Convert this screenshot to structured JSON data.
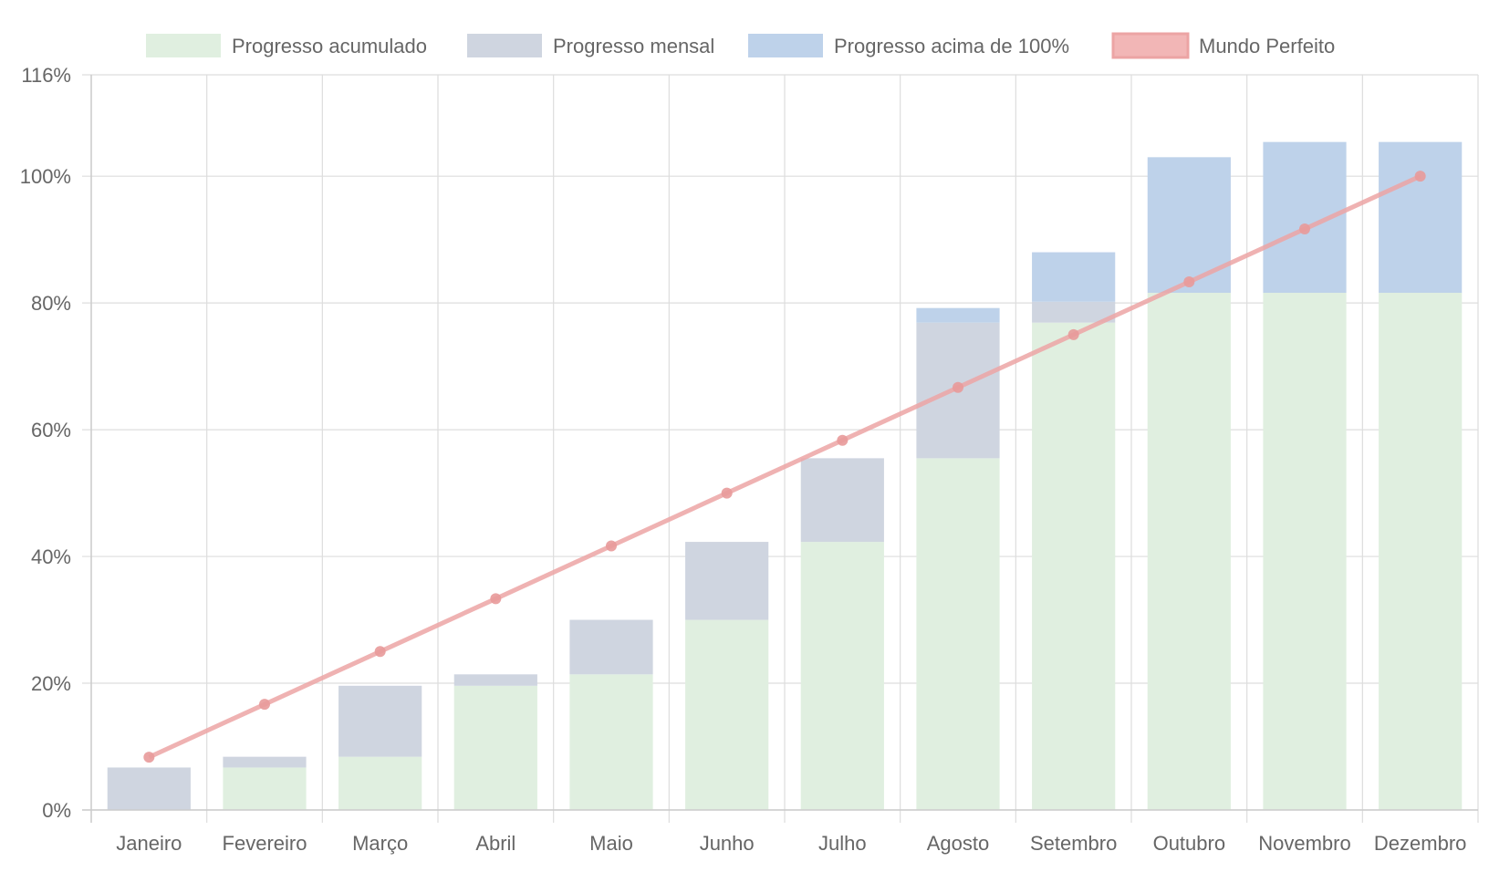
{
  "chart_data": {
    "type": "bar",
    "title": "",
    "xlabel": "",
    "ylabel": "",
    "ylim": [
      0,
      116
    ],
    "y_ticks": [
      "0%",
      "20%",
      "40%",
      "60%",
      "80%",
      "100%",
      "116%"
    ],
    "y_tick_values": [
      0,
      20,
      40,
      60,
      80,
      100,
      116
    ],
    "stacked": true,
    "grid": true,
    "legend_position": "top",
    "categories": [
      "Janeiro",
      "Fevereiro",
      "Março",
      "Abril",
      "Maio",
      "Junho",
      "Julho",
      "Agosto",
      "Setembro",
      "Outubro",
      "Novembro",
      "Dezembro"
    ],
    "series": [
      {
        "name": "Progresso acumulado",
        "kind": "bar",
        "color": "#e0efe0",
        "values": [
          0,
          6.7,
          8.4,
          19.6,
          21.4,
          30.0,
          42.3,
          55.5,
          76.9,
          81.6,
          81.6,
          81.6
        ]
      },
      {
        "name": "Progresso mensal",
        "kind": "bar",
        "color": "#cfd5e0",
        "values": [
          6.7,
          1.7,
          11.2,
          1.8,
          8.6,
          12.3,
          13.2,
          21.4,
          3.3,
          0,
          0,
          0
        ]
      },
      {
        "name": "Progresso acima de 100%",
        "kind": "bar",
        "color": "#bed2ea",
        "values": [
          0,
          0,
          0,
          0,
          0,
          0,
          0,
          2.3,
          7.8,
          21.4,
          23.8,
          23.8
        ]
      },
      {
        "name": "Mundo Perfeito",
        "kind": "line",
        "color": "#eca4a4",
        "values": [
          8.33,
          16.67,
          25.0,
          33.33,
          41.67,
          50.0,
          58.33,
          66.67,
          75.0,
          83.33,
          91.67,
          100.0
        ]
      }
    ],
    "colors": {
      "grid": "#dddddd",
      "axis": "#cccccc",
      "text": "#666666",
      "line_point": "#e89a9a"
    }
  }
}
